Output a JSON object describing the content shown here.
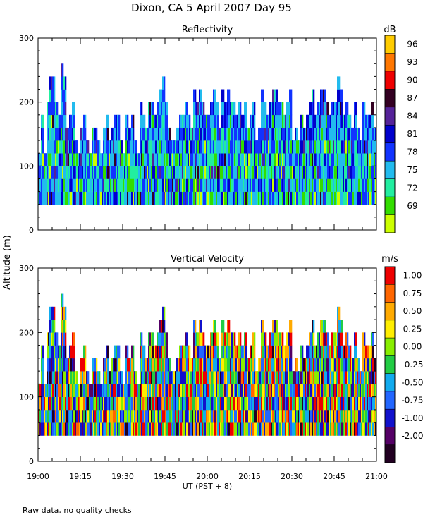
{
  "title": "Dixon, CA   5 April 2007   Day   95",
  "xlabel": "UT   (PST + 8)",
  "ylabel": "Altitude  (m)",
  "footnote": "Raw data, no quality checks",
  "x_ticks": [
    "19:00",
    "19:15",
    "19:30",
    "19:45",
    "20:00",
    "20:15",
    "20:30",
    "20:45",
    "21:00"
  ],
  "y_ticks": [
    "0",
    "100",
    "200",
    "300"
  ],
  "chart_data": [
    {
      "type": "heatmap",
      "title": "Reflectivity",
      "colorbar_unit": "dB",
      "colorbar_labels": [
        "96",
        "93",
        "90",
        "87",
        "84",
        "81",
        "78",
        "75",
        "72",
        "69"
      ],
      "color_scale": [
        "#ccff00",
        "#33dd00",
        "#22eea0",
        "#22bbee",
        "#1133ff",
        "#0000cc",
        "#552299",
        "#330022",
        "#ee0000",
        "#ff7700",
        "#ffcc00"
      ],
      "xlim": [
        "19:00",
        "21:00"
      ],
      "ylim": [
        0,
        300
      ],
      "data_altitude_range_m": [
        40,
        260
      ],
      "grid": false,
      "column_top_altitude_m": [
        120,
        180,
        120,
        200,
        240,
        240,
        200,
        180,
        260,
        240,
        160,
        180,
        200,
        140,
        120,
        160,
        180,
        140,
        120,
        160,
        160,
        140,
        120,
        160,
        180,
        140,
        160,
        180,
        180,
        140,
        120,
        180,
        160,
        180,
        140,
        120,
        200,
        180,
        160,
        200,
        200,
        180,
        200,
        220,
        240,
        200,
        160,
        140,
        140,
        160,
        180,
        180,
        200,
        180,
        160,
        220,
        200,
        220,
        200,
        180,
        180,
        200,
        220,
        200,
        160,
        220,
        200,
        220,
        200,
        200,
        180,
        200,
        180,
        200,
        160,
        180,
        200,
        140,
        160,
        220,
        200,
        180,
        200,
        220,
        220,
        200,
        200,
        180,
        200,
        220,
        140,
        160,
        140,
        180,
        160,
        180,
        200,
        220,
        180,
        200,
        220,
        220,
        200,
        180,
        200,
        200,
        240,
        220,
        180,
        200,
        180,
        160,
        200,
        160,
        140,
        200,
        180,
        180,
        200,
        160
      ]
    },
    {
      "type": "heatmap",
      "title": "Vertical Velocity",
      "colorbar_unit": "m/s",
      "colorbar_labels": [
        "1.00",
        "0.75",
        "0.50",
        "0.25",
        "0.00",
        "-0.25",
        "-0.50",
        "-0.75",
        "-1.00",
        "-2.00"
      ],
      "color_scale": [
        "#220022",
        "#550066",
        "#1111cc",
        "#2266ff",
        "#11aaee",
        "#22cc44",
        "#88ee00",
        "#ffee00",
        "#ffaa00",
        "#ff6600",
        "#ee0000"
      ],
      "xlim": [
        "19:00",
        "21:00"
      ],
      "ylim": [
        0,
        300
      ],
      "data_altitude_range_m": [
        40,
        260
      ],
      "grid": false,
      "column_top_altitude_m": [
        120,
        180,
        120,
        200,
        240,
        240,
        200,
        180,
        260,
        240,
        160,
        180,
        200,
        140,
        120,
        160,
        180,
        140,
        120,
        160,
        160,
        140,
        120,
        160,
        180,
        140,
        160,
        180,
        180,
        140,
        120,
        180,
        160,
        180,
        140,
        120,
        200,
        180,
        160,
        200,
        200,
        180,
        200,
        220,
        240,
        200,
        160,
        140,
        140,
        160,
        180,
        180,
        200,
        180,
        160,
        220,
        200,
        220,
        200,
        180,
        180,
        200,
        220,
        200,
        160,
        220,
        200,
        220,
        200,
        200,
        180,
        200,
        180,
        200,
        160,
        180,
        200,
        140,
        160,
        220,
        200,
        180,
        200,
        220,
        220,
        200,
        200,
        180,
        200,
        220,
        140,
        160,
        140,
        180,
        160,
        180,
        200,
        220,
        180,
        200,
        220,
        220,
        200,
        180,
        200,
        200,
        240,
        220,
        180,
        200,
        180,
        160,
        200,
        160,
        140,
        200,
        180,
        180,
        200,
        160
      ]
    }
  ]
}
